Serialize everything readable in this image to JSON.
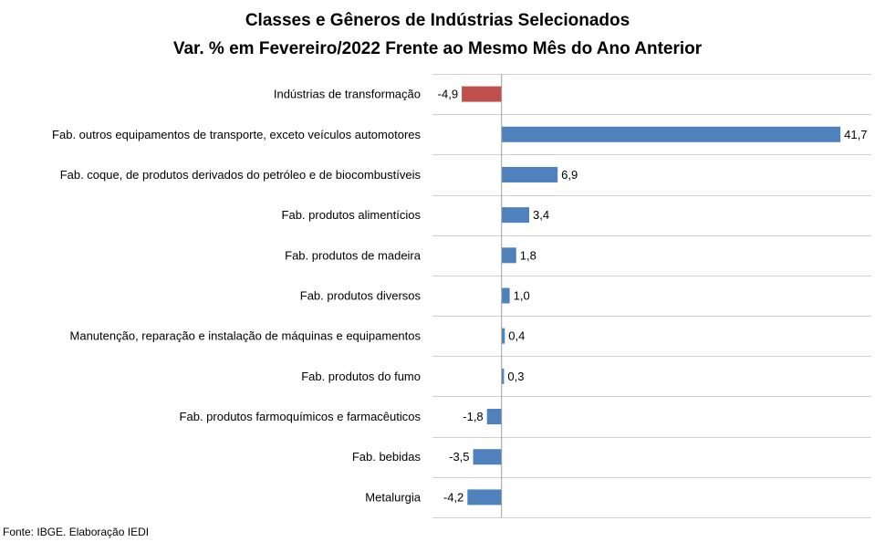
{
  "chart_data": {
    "type": "bar",
    "orientation": "horizontal",
    "title_lines": [
      "Classes e Gêneros de Indústrias Selecionados",
      "Var. % em Fevereiro/2022 Frente ao Mesmo Mês do Ano Anterior"
    ],
    "categories": [
      "Indústrias de transformação",
      "Fab. outros equipamentos de transporte, exceto veículos automotores",
      "Fab. coque, de produtos derivados do petróleo e de biocombustíveis",
      "Fab. produtos alimentícios",
      "Fab. produtos de madeira",
      "Fab. produtos diversos",
      "Manutenção, reparação e instalação de máquinas e equipamentos",
      "Fab. produtos do fumo",
      "Fab. produtos farmoquímicos e farmacêuticos",
      "Fab. bebidas",
      "Metalurgia"
    ],
    "values": [
      -4.9,
      41.7,
      6.9,
      3.4,
      1.8,
      1.0,
      0.4,
      0.3,
      -1.8,
      -3.5,
      -4.2
    ],
    "labels": [
      "-4,9",
      "41,7",
      "6,9",
      "3,4",
      "1,8",
      "1,0",
      "0,4",
      "0,3",
      "-1,8",
      "-3,5",
      "-4,2"
    ],
    "colors": [
      "#c0504d",
      "#4f81bd",
      "#4f81bd",
      "#4f81bd",
      "#4f81bd",
      "#4f81bd",
      "#4f81bd",
      "#4f81bd",
      "#4f81bd",
      "#4f81bd",
      "#4f81bd"
    ],
    "xlim": [
      -8.5,
      45.5
    ],
    "grid": "horizontal-lines"
  },
  "footer": "Fonte: IBGE. Elaboração IEDI"
}
